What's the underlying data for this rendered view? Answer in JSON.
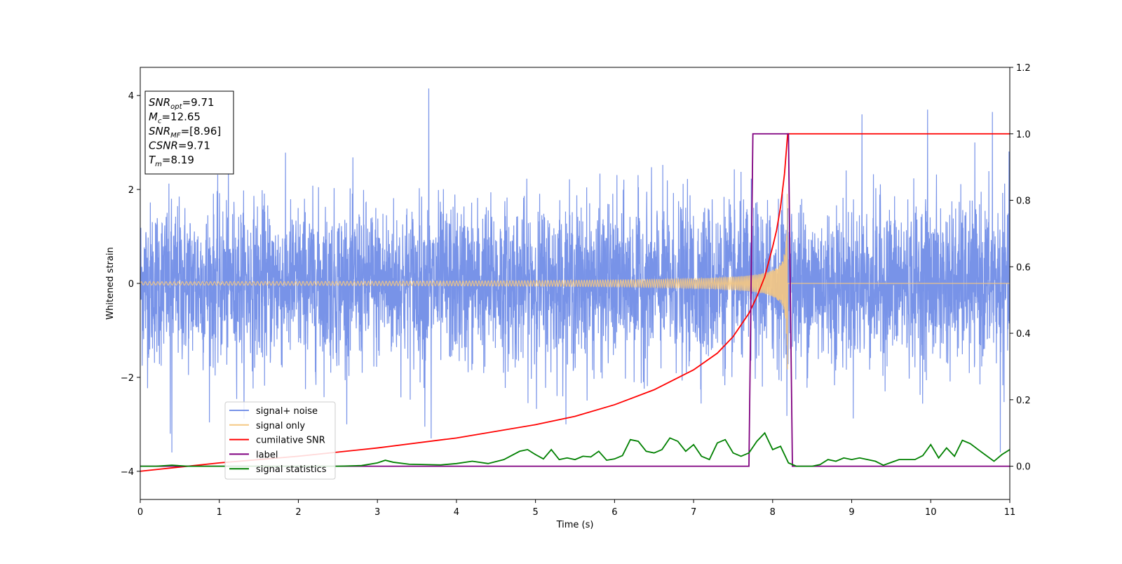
{
  "chart_data": {
    "type": "line",
    "title": "",
    "xlabel": "Time (s)",
    "ylabel": "Whitened strain",
    "y2label": "",
    "xlim": [
      0,
      11
    ],
    "ylim": [
      -4.6,
      4.6
    ],
    "y2lim": [
      -0.1,
      1.2
    ],
    "x_ticks": [
      0,
      1,
      2,
      3,
      4,
      5,
      6,
      7,
      8,
      9,
      10,
      11
    ],
    "x_tick_labels": [
      "0",
      "1",
      "2",
      "3",
      "4",
      "5",
      "6",
      "7",
      "8",
      "9",
      "10",
      "11"
    ],
    "y_ticks": [
      -4,
      -2,
      0,
      2,
      4
    ],
    "y_tick_labels": [
      "−4",
      "−2",
      "0",
      "2",
      "4"
    ],
    "y2_ticks": [
      0.0,
      0.2,
      0.4,
      0.6,
      0.8,
      1.0,
      1.2
    ],
    "y2_tick_labels": [
      "0.0",
      "0.2",
      "0.4",
      "0.6",
      "0.8",
      "1.0",
      "1.2"
    ],
    "grid": false,
    "legend_position": "lower-left",
    "annotation": {
      "lines": [
        {
          "base": "SNR",
          "sub": "opt",
          "value": "=9.71"
        },
        {
          "base": "M",
          "sub": "c",
          "value": "=12.65"
        },
        {
          "base": "SNR",
          "sub": "MF",
          "value": "=[8.96]"
        },
        {
          "base": "CSNR",
          "sub": "",
          "value": "=9.71"
        },
        {
          "base": "T",
          "sub": "m",
          "value": "=8.19"
        }
      ]
    },
    "series": [
      {
        "name": "signal+ noise",
        "color": "#7893e8",
        "axis": "left",
        "style": "noise",
        "sample_x_range": [
          0,
          11
        ],
        "noise_std": 1.0,
        "visible_extremes": [
          {
            "x": 0.38,
            "y": -3.2
          },
          {
            "x": 0.4,
            "y": -3.6
          },
          {
            "x": 3.65,
            "y": 4.15
          },
          {
            "x": 3.6,
            "y": -3.05
          },
          {
            "x": 3.68,
            "y": -3.3
          },
          {
            "x": 9.13,
            "y": 3.6
          },
          {
            "x": 9.96,
            "y": 3.7
          },
          {
            "x": 10.78,
            "y": 3.65
          },
          {
            "x": 10.88,
            "y": -3.6
          }
        ]
      },
      {
        "name": "signal only",
        "color": "#f5c882",
        "axis": "left",
        "style": "chirp",
        "merger_time": 8.19,
        "amplitude_start": 0.05,
        "amplitude_peak": 2.3,
        "after_merger": 0
      },
      {
        "name": "cumilative SNR",
        "color": "#ff0000",
        "axis": "right",
        "x": [
          0,
          1,
          2,
          3,
          4,
          5,
          5.5,
          6,
          6.5,
          7,
          7.3,
          7.5,
          7.7,
          7.8,
          7.9,
          8.0,
          8.05,
          8.1,
          8.15,
          8.19,
          8.2,
          11
        ],
        "y": [
          -0.015,
          0.01,
          0.03,
          0.055,
          0.085,
          0.125,
          0.15,
          0.185,
          0.23,
          0.29,
          0.34,
          0.39,
          0.46,
          0.51,
          0.57,
          0.66,
          0.71,
          0.78,
          0.88,
          1.0,
          1.0,
          1.0
        ]
      },
      {
        "name": "label",
        "color": "#800080",
        "axis": "right",
        "x": [
          0,
          7.7,
          7.75,
          8.2,
          8.25,
          11
        ],
        "y": [
          0,
          0,
          1,
          1,
          0,
          0
        ]
      },
      {
        "name": "signal statistics",
        "color": "#008000",
        "axis": "right",
        "x": [
          0,
          0.2,
          0.4,
          0.6,
          0.8,
          1.0,
          1.5,
          2.0,
          2.5,
          2.8,
          3.0,
          3.1,
          3.2,
          3.4,
          3.6,
          3.8,
          4.0,
          4.2,
          4.4,
          4.6,
          4.8,
          4.9,
          5.0,
          5.1,
          5.2,
          5.3,
          5.4,
          5.5,
          5.6,
          5.7,
          5.8,
          5.9,
          6.0,
          6.1,
          6.2,
          6.3,
          6.4,
          6.5,
          6.6,
          6.7,
          6.8,
          6.9,
          7.0,
          7.1,
          7.2,
          7.3,
          7.4,
          7.5,
          7.6,
          7.7,
          7.8,
          7.9,
          7.95,
          8.0,
          8.1,
          8.2,
          8.3,
          8.5,
          8.6,
          8.7,
          8.8,
          8.9,
          9.0,
          9.1,
          9.2,
          9.3,
          9.4,
          9.6,
          9.8,
          9.9,
          10.0,
          10.1,
          10.2,
          10.3,
          10.4,
          10.5,
          10.6,
          10.8,
          10.9,
          11.0
        ],
        "y": [
          0.0,
          0.0,
          0.003,
          0.0,
          0.0,
          0.0,
          0.0,
          0.0,
          0.0,
          0.002,
          0.01,
          0.018,
          0.012,
          0.006,
          0.005,
          0.004,
          0.008,
          0.015,
          0.008,
          0.02,
          0.045,
          0.05,
          0.035,
          0.022,
          0.05,
          0.02,
          0.025,
          0.02,
          0.03,
          0.028,
          0.045,
          0.018,
          0.022,
          0.032,
          0.08,
          0.075,
          0.045,
          0.04,
          0.05,
          0.085,
          0.075,
          0.045,
          0.065,
          0.03,
          0.02,
          0.07,
          0.08,
          0.04,
          0.03,
          0.04,
          0.075,
          0.1,
          0.075,
          0.05,
          0.06,
          0.01,
          0.0,
          0.0,
          0.005,
          0.02,
          0.015,
          0.025,
          0.02,
          0.025,
          0.02,
          0.015,
          0.003,
          0.02,
          0.02,
          0.032,
          0.065,
          0.025,
          0.055,
          0.03,
          0.078,
          0.068,
          0.05,
          0.015,
          0.035,
          0.05
        ]
      }
    ]
  }
}
